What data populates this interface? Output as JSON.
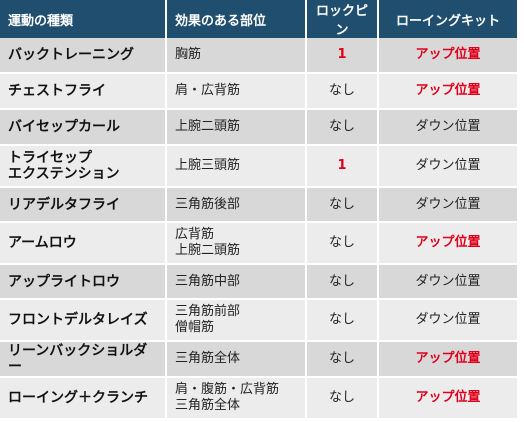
{
  "headers": [
    "運動の種類",
    "効果のある部位",
    "ロックピン",
    "ローイングキット"
  ],
  "rows": [
    {
      "exercise": [
        "バックトレーニング"
      ],
      "muscles": [
        "胸筋"
      ],
      "lock_pin": "1",
      "lock_red": true,
      "rowing": "アップ位置",
      "rowing_red": true
    },
    {
      "exercise": [
        "チェストフライ"
      ],
      "muscles": [
        "肩・広背筋"
      ],
      "lock_pin": "なし",
      "lock_red": false,
      "rowing": "アップ位置",
      "rowing_red": true
    },
    {
      "exercise": [
        "バイセップカール"
      ],
      "muscles": [
        "上腕二頭筋"
      ],
      "lock_pin": "なし",
      "lock_red": false,
      "rowing": "ダウン位置",
      "rowing_red": false
    },
    {
      "exercise": [
        "トライセップ",
        "エクステンション"
      ],
      "muscles": [
        "上腕三頭筋"
      ],
      "lock_pin": "1",
      "lock_red": true,
      "rowing": "ダウン位置",
      "rowing_red": false
    },
    {
      "exercise": [
        "リアデルタフライ"
      ],
      "muscles": [
        "三角筋後部"
      ],
      "lock_pin": "なし",
      "lock_red": false,
      "rowing": "ダウン位置",
      "rowing_red": false
    },
    {
      "exercise": [
        "アームロウ"
      ],
      "muscles": [
        "広背筋",
        "上腕二頭筋"
      ],
      "lock_pin": "なし",
      "lock_red": false,
      "rowing": "アップ位置",
      "rowing_red": true
    },
    {
      "exercise": [
        "アップライトロウ"
      ],
      "muscles": [
        "三角筋中部"
      ],
      "lock_pin": "なし",
      "lock_red": false,
      "rowing": "ダウン位置",
      "rowing_red": false
    },
    {
      "exercise": [
        "フロントデルタレイズ"
      ],
      "muscles": [
        "三角筋前部",
        "僧帽筋"
      ],
      "lock_pin": "なし",
      "lock_red": false,
      "rowing": "ダウン位置",
      "rowing_red": false
    },
    {
      "exercise": [
        "リーンバックショルダー"
      ],
      "muscles": [
        "三角筋全体"
      ],
      "lock_pin": "なし",
      "lock_red": false,
      "rowing": "アップ位置",
      "rowing_red": true
    },
    {
      "exercise": [
        "ローイング＋クランチ"
      ],
      "muscles": [
        "肩・腹筋・広背筋",
        "三角筋全体"
      ],
      "lock_pin": "なし",
      "lock_red": false,
      "rowing": "アップ位置",
      "rowing_red": true
    }
  ],
  "colors": {
    "header_bg": "#1f4e6e",
    "row_dark": "#d8d8d8",
    "row_light": "#ececec",
    "highlight": "#e0001b"
  }
}
